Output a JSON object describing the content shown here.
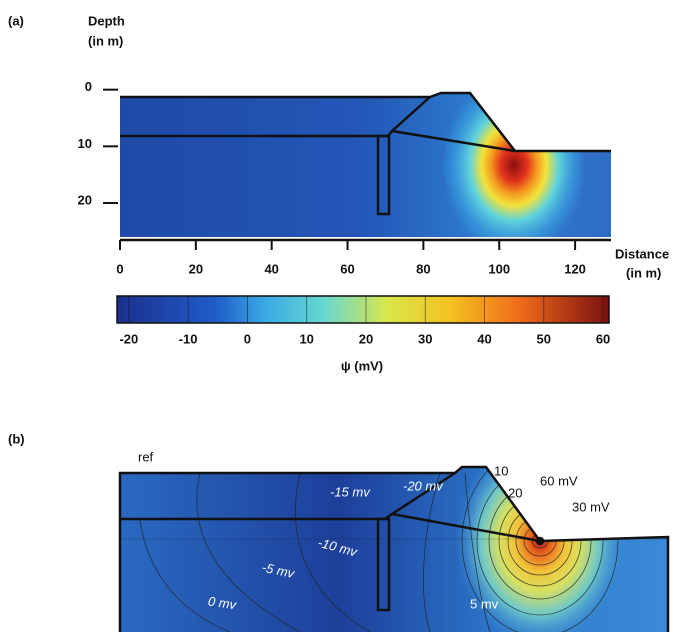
{
  "chart_data": [
    {
      "type": "heatmap",
      "panel_label": "(a)",
      "y_label": [
        "Depth",
        "(in m)"
      ],
      "x_label": [
        "Distance",
        "(in m)"
      ],
      "xlim": [
        0,
        130
      ],
      "xticks": [
        0,
        20,
        40,
        60,
        80,
        100,
        120
      ],
      "ylim": [
        -1,
        26
      ],
      "y_direction": "down",
      "yticks": [
        0,
        10,
        20
      ],
      "colorbar": {
        "label": "ψ (mV)",
        "clim": [
          -22,
          61
        ],
        "ticks": [
          -20,
          -10,
          0,
          10,
          20,
          30,
          40,
          50,
          60
        ]
      }
    },
    {
      "type": "contour",
      "panel_label": "(b)",
      "annotations": [
        "ref",
        "-15 mv",
        "-20 mv",
        "10",
        "20",
        "60 mV",
        "30 mV",
        "-10 mv",
        "-5 mv",
        "0 mv",
        "5 mv"
      ]
    }
  ]
}
